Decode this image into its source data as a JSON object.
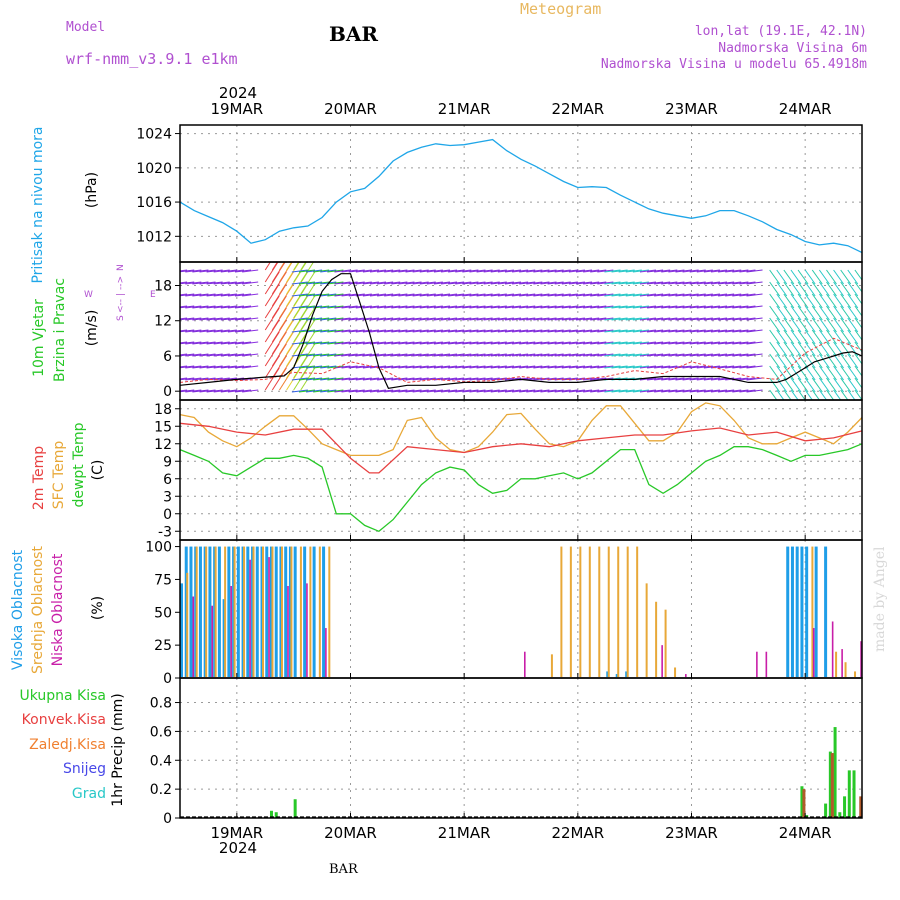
{
  "header": {
    "model_label": "Model",
    "model_name": "wrf-nmm_v3.9.1 e1km",
    "station": "BAR",
    "title": "Meteogram",
    "lonlat": "lon,lat (19.1E, 42.1N)",
    "elevation": "Nadmorska Visina 6m",
    "model_elevation": "Nadmorska Visina u modelu 65.4918m"
  },
  "footer": {
    "station": "BAR",
    "signature": "made by Angel"
  },
  "time_axis": {
    "year": "2024",
    "days": [
      "19MAR",
      "20MAR",
      "21MAR",
      "22MAR",
      "23MAR",
      "24MAR"
    ],
    "start_hour": 0,
    "end_hour": 144
  },
  "colors": {
    "pressure": "#1fa6e8",
    "wind_speed": "#000000",
    "wind_gust": "#e84040",
    "temp_2m": "#e84040",
    "temp_sfc": "#e8a838",
    "dewpoint": "#28c828",
    "cloud_high": "#1f9ee8",
    "cloud_mid": "#e8a838",
    "cloud_low": "#c81ea8",
    "precip_total": "#28c828",
    "precip_conv": "#e84040",
    "precip_frz": "#f08030",
    "precip_snow": "#4848e8",
    "precip_grad": "#28c8c8"
  },
  "panels": {
    "pressure": {
      "ylabel": "Pritisak na nivou mora",
      "unit": "(hPa)"
    },
    "wind": {
      "ylabel_1": "10m Vjetar",
      "ylabel_2": "Brzina i Pravac",
      "unit": "(m/s)",
      "compass_n": "N",
      "compass_w": "W",
      "compass_e": "E",
      "compass_s": "S"
    },
    "temp": {
      "ylabel_1": "2m Temp",
      "ylabel_2": "SFC Temp",
      "ylabel_3": "dewpt Temp",
      "unit": "(C)"
    },
    "cloud": {
      "ylabel_1": "Visoka Oblacnost",
      "ylabel_2": "Srednja Oblacnost",
      "ylabel_3": "Niska Oblacnost",
      "unit": "(%)"
    },
    "precip": {
      "legend": [
        "Ukupna Kisa",
        "Konvek.Kisa",
        "Zaledj.Kisa",
        "Snijeg",
        "Grad"
      ],
      "ylabel": "1hr Precip (mm)"
    }
  },
  "chart_data": [
    {
      "type": "line",
      "name": "pressure",
      "ylim": [
        1009,
        1025
      ],
      "yticks": [
        1012,
        1016,
        1020,
        1024
      ],
      "grid": true,
      "series": [
        {
          "x": [
            0,
            3,
            6,
            9,
            12,
            15,
            18,
            21,
            24,
            27,
            30,
            33,
            36,
            39,
            42,
            45,
            48,
            51,
            54,
            57,
            60,
            63,
            66,
            69,
            72,
            75,
            78,
            81,
            84,
            87,
            90,
            93,
            96,
            99,
            102,
            105,
            108,
            111,
            114,
            117,
            120,
            123,
            126,
            129,
            132,
            135,
            138,
            141,
            144
          ],
          "y": [
            1016,
            1015,
            1014.3,
            1013.6,
            1012.6,
            1011.2,
            1011.6,
            1012.6,
            1013.0,
            1013.2,
            1014.2,
            1016.0,
            1017.2,
            1017.6,
            1019.0,
            1020.8,
            1021.8,
            1022.4,
            1022.8,
            1022.6,
            1022.7,
            1023.0,
            1023.3,
            1022.0,
            1021.0,
            1020.2,
            1019.3,
            1018.4,
            1017.7,
            1017.8,
            1017.7,
            1016.8,
            1016.0,
            1015.2,
            1014.7,
            1014.4,
            1014.1,
            1014.4,
            1015.0,
            1015.0,
            1014.4,
            1013.7,
            1012.8,
            1012.2,
            1011.4,
            1011.0,
            1011.2,
            1010.9,
            1010.1
          ]
        }
      ]
    },
    {
      "type": "line",
      "name": "wind",
      "ylim": [
        -1.5,
        22
      ],
      "yticks": [
        0,
        6,
        12,
        18
      ],
      "grid": true,
      "series": [
        {
          "name": "speed",
          "x": [
            0,
            6,
            12,
            18,
            22,
            24,
            26,
            28,
            30,
            32,
            34,
            36,
            38,
            40,
            42,
            44,
            48,
            54,
            60,
            66,
            72,
            78,
            84,
            90,
            96,
            102,
            108,
            114,
            120,
            126,
            128,
            130,
            132,
            134,
            136,
            138,
            140,
            142,
            144
          ],
          "y": [
            1,
            1.5,
            2,
            2.4,
            2.6,
            4,
            8,
            13,
            17,
            19,
            20,
            20,
            15,
            10,
            4,
            0.5,
            1,
            1,
            1.5,
            1.5,
            2,
            1.5,
            1.5,
            2,
            2,
            2.5,
            2.5,
            2.5,
            1.5,
            1.5,
            2,
            3,
            4,
            5,
            5.5,
            6,
            6.5,
            6.7,
            6
          ]
        },
        {
          "name": "gust",
          "x": [
            0,
            6,
            12,
            18,
            24,
            30,
            36,
            42,
            48,
            54,
            60,
            66,
            72,
            78,
            84,
            90,
            96,
            102,
            108,
            114,
            120,
            126,
            132,
            138,
            144
          ],
          "y": [
            1.5,
            2,
            1.8,
            2,
            3.2,
            3,
            5,
            4,
            1.5,
            2,
            1.6,
            1.8,
            2.5,
            2,
            2,
            2.5,
            3.5,
            3,
            5,
            3.8,
            2.5,
            2,
            6.5,
            9,
            7
          ]
        }
      ]
    },
    {
      "type": "line",
      "name": "temperature",
      "ylim": [
        -4.5,
        19.5
      ],
      "yticks": [
        -3,
        0,
        3,
        6,
        9,
        12,
        15,
        18
      ],
      "grid": true,
      "series": [
        {
          "name": "2m Temp",
          "x": [
            0,
            6,
            12,
            18,
            24,
            30,
            36,
            40,
            42,
            48,
            54,
            60,
            66,
            72,
            78,
            84,
            90,
            96,
            102,
            108,
            114,
            120,
            126,
            132,
            138,
            144
          ],
          "y": [
            15.5,
            15,
            14,
            13.5,
            14.5,
            14.5,
            9.5,
            7,
            7,
            11.5,
            11,
            10.5,
            11.5,
            12,
            11.5,
            12.5,
            13,
            13.5,
            13.5,
            14.2,
            14.7,
            13.5,
            14,
            12.5,
            13,
            14.2
          ]
        },
        {
          "name": "SFC Temp",
          "x": [
            0,
            3,
            6,
            9,
            12,
            15,
            18,
            21,
            24,
            27,
            30,
            33,
            36,
            39,
            42,
            45,
            48,
            51,
            54,
            57,
            60,
            63,
            66,
            69,
            72,
            75,
            78,
            81,
            84,
            87,
            90,
            93,
            96,
            99,
            102,
            105,
            108,
            111,
            114,
            117,
            120,
            123,
            126,
            129,
            132,
            135,
            138,
            141,
            144
          ],
          "y": [
            17,
            16.5,
            14,
            12.5,
            11.5,
            13,
            15,
            16.8,
            16.8,
            14.5,
            12,
            11,
            10,
            10,
            10,
            11,
            16,
            16.5,
            13,
            11,
            10.5,
            11.5,
            14,
            17,
            17.2,
            14.5,
            12,
            11.5,
            12.5,
            16,
            18.5,
            18.5,
            15.5,
            12.5,
            12.5,
            14,
            17.5,
            19,
            18.5,
            16,
            13,
            12,
            12,
            13,
            14,
            13,
            12,
            14,
            16.5
          ]
        },
        {
          "name": "dewpt Temp",
          "x": [
            0,
            3,
            6,
            9,
            12,
            15,
            18,
            21,
            24,
            27,
            30,
            33,
            36,
            39,
            42,
            45,
            48,
            51,
            54,
            57,
            60,
            63,
            66,
            69,
            72,
            75,
            78,
            81,
            84,
            87,
            90,
            93,
            96,
            99,
            102,
            105,
            108,
            111,
            114,
            117,
            120,
            123,
            126,
            129,
            132,
            135,
            138,
            141,
            144
          ],
          "y": [
            11,
            10,
            9,
            7,
            6.5,
            8,
            9.5,
            9.5,
            10,
            9.5,
            8,
            0,
            0,
            -2,
            -3,
            -1,
            2,
            5,
            7,
            8,
            7.5,
            5,
            3.5,
            4,
            6,
            6,
            6.5,
            7,
            6,
            7,
            9,
            11,
            11,
            5,
            3.5,
            5,
            7,
            9,
            10,
            11.5,
            11.5,
            11,
            10,
            9,
            10,
            10,
            10.5,
            11,
            12
          ]
        }
      ]
    },
    {
      "type": "bar",
      "name": "cloud cover",
      "ylim": [
        0,
        105
      ],
      "yticks": [
        0,
        25,
        50,
        75,
        100
      ],
      "grid": false,
      "series": [
        {
          "name": "Visoka Oblacnost",
          "x": [
            0,
            1,
            2,
            3,
            4,
            5,
            6,
            7,
            8,
            9,
            10,
            11,
            12,
            13,
            14,
            15,
            16,
            17,
            18,
            19,
            20,
            21,
            22,
            23,
            24,
            26,
            28,
            30,
            90,
            92,
            94,
            128,
            129,
            130,
            131,
            132,
            134,
            136
          ],
          "values": [
            72,
            100,
            100,
            100,
            100,
            100,
            100,
            100,
            100,
            60,
            100,
            100,
            100,
            100,
            100,
            100,
            100,
            100,
            100,
            100,
            100,
            100,
            100,
            100,
            100,
            100,
            100,
            100,
            5,
            3,
            5,
            100,
            100,
            100,
            100,
            100,
            100,
            100
          ]
        },
        {
          "name": "Srednja Oblacnost",
          "x": [
            1,
            3,
            5,
            7,
            9,
            11,
            13,
            15,
            17,
            19,
            21,
            23,
            25,
            27,
            29,
            31,
            78,
            80,
            82,
            84,
            86,
            88,
            90,
            92,
            94,
            96,
            98,
            100,
            102,
            104,
            133,
            138,
            140,
            142
          ],
          "values": [
            80,
            100,
            100,
            100,
            100,
            100,
            100,
            100,
            100,
            100,
            100,
            100,
            100,
            100,
            100,
            100,
            18,
            100,
            100,
            100,
            100,
            100,
            100,
            100,
            100,
            100,
            72,
            58,
            52,
            8,
            100,
            20,
            12,
            5
          ]
        },
        {
          "name": "Niska Oblacnost",
          "x": [
            2,
            6,
            10,
            14,
            18,
            22,
            26,
            30,
            72,
            101,
            106,
            121,
            123,
            133,
            137,
            139,
            143
          ],
          "values": [
            62,
            55,
            70,
            90,
            92,
            70,
            72,
            38,
            20,
            25,
            3,
            20,
            20,
            38,
            43,
            22,
            28
          ]
        }
      ]
    },
    {
      "type": "bar",
      "name": "precipitation",
      "ylim": [
        0,
        0.97
      ],
      "yticks": [
        0,
        0.2,
        0.4,
        0.6,
        0.8
      ],
      "grid": true,
      "series": [
        {
          "name": "Ukupna Kisa",
          "x": [
            19,
            20,
            24,
            131,
            132,
            136,
            137,
            138,
            139,
            140,
            141,
            142
          ],
          "values": [
            0.05,
            0.04,
            0.13,
            0.22,
            0.02,
            0.1,
            0.46,
            0.63,
            0.04,
            0.15,
            0.33,
            0.33
          ]
        },
        {
          "name": "Konvek.Kisa",
          "x": [
            131,
            137,
            143
          ],
          "values": [
            0.2,
            0.45,
            0.15
          ]
        }
      ]
    }
  ]
}
